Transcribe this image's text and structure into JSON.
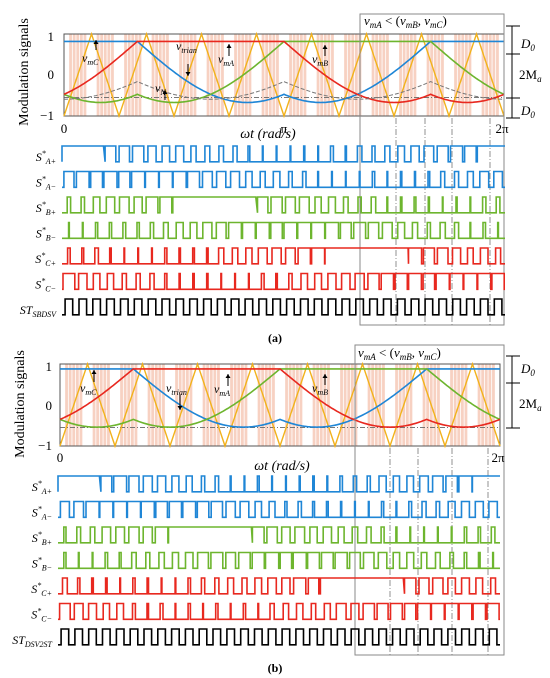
{
  "colors": {
    "blue": "#1f86d6",
    "green": "#6db52e",
    "red": "#e8281f",
    "orange": "#f2b21c",
    "gray": "#8a8a8a",
    "black": "#000000",
    "shade": "#f6c9b7",
    "yellow_edge": "#c9d22a"
  },
  "panel_a": {
    "ylabel": "Modulation signals",
    "xlabel": "ωt (rad/s)",
    "y_ticks": [
      "1",
      "0",
      "−1"
    ],
    "x_ticks": [
      "0",
      "π",
      "2π"
    ],
    "box_label": "vmA < (vmB, vmC)",
    "box_label_parts": {
      "v1": "v",
      "s1": "mA",
      "op": " < (",
      "v2": "v",
      "s2": "mB",
      "comma": ", ",
      "v3": "v",
      "s3": "mC",
      "close": ")"
    },
    "ann_vmC": {
      "v": "v",
      "s": "mC"
    },
    "ann_vtrian": {
      "v": "v",
      "s": "trian"
    },
    "ann_vmA": {
      "v": "v",
      "s": "mA"
    },
    "ann_vmB": {
      "v": "v",
      "s": "mB"
    },
    "ann_vN": {
      "v": "v",
      "s": "N"
    },
    "dim_D0_top": {
      "v": "D",
      "s": "0"
    },
    "dim_2Ma": {
      "v": "2M",
      "s": "a"
    },
    "dim_D0_bottom": {
      "v": "D",
      "s": "0"
    },
    "signals": [
      {
        "name": "S",
        "sup": "*",
        "sub": "A+"
      },
      {
        "name": "S",
        "sup": "*",
        "sub": "A−"
      },
      {
        "name": "S",
        "sup": "*",
        "sub": "B+"
      },
      {
        "name": "S",
        "sup": "*",
        "sub": "B−"
      },
      {
        "name": "S",
        "sup": "*",
        "sub": "C+"
      },
      {
        "name": "S",
        "sup": "*",
        "sub": "C−"
      },
      {
        "name": "ST",
        "sup": "",
        "sub": "SBDSV"
      }
    ],
    "caption": "(a)"
  },
  "panel_b": {
    "ylabel": "Modulation signals",
    "xlabel": "ωt (rad/s)",
    "y_ticks": [
      "1",
      "0",
      "−1"
    ],
    "x_ticks": [
      "0",
      "2π"
    ],
    "box_label_parts": {
      "v1": "v",
      "s1": "mA",
      "op": " < (",
      "v2": "v",
      "s2": "mB",
      "comma": ", ",
      "v3": "v",
      "s3": "mC",
      "close": ")"
    },
    "ann_vmC": {
      "v": "v",
      "s": "mC"
    },
    "ann_vtrian": {
      "v": "v",
      "s": "trian"
    },
    "ann_vmA": {
      "v": "v",
      "s": "mA"
    },
    "ann_vmB": {
      "v": "v",
      "s": "mB"
    },
    "dim_D0": {
      "v": "D",
      "s": "0"
    },
    "dim_2Ma": {
      "v": "2M",
      "s": "a"
    },
    "signals": [
      {
        "name": "S",
        "sup": "*",
        "sub": "A+"
      },
      {
        "name": "S",
        "sup": "*",
        "sub": "A−"
      },
      {
        "name": "S",
        "sup": "*",
        "sub": "B+"
      },
      {
        "name": "S",
        "sup": "*",
        "sub": "B−"
      },
      {
        "name": "S",
        "sup": "*",
        "sub": "C+"
      },
      {
        "name": "S",
        "sup": "*",
        "sub": "C−"
      },
      {
        "name": "ST",
        "sup": "",
        "sub": "DSV2ST"
      }
    ],
    "caption": "(b)"
  }
}
